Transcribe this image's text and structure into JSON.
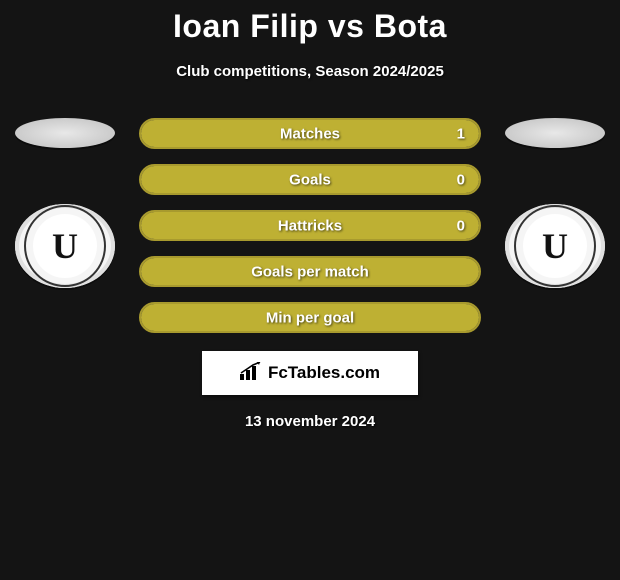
{
  "title": "Ioan Filip vs Bota",
  "subtitle": "Club competitions, Season 2024/2025",
  "date": "13 november 2024",
  "brand": "FcTables.com",
  "colors": {
    "bar_border": "#a89a2e",
    "bar_fill": "#beb033",
    "bar_empty": "#3a3a3a",
    "background": "#141414"
  },
  "badge_letter": "U",
  "stats": [
    {
      "label": "Matches",
      "value": "1",
      "fill_pct": 100
    },
    {
      "label": "Goals",
      "value": "0",
      "fill_pct": 100
    },
    {
      "label": "Hattricks",
      "value": "0",
      "fill_pct": 100
    },
    {
      "label": "Goals per match",
      "value": "",
      "fill_pct": 100
    },
    {
      "label": "Min per goal",
      "value": "",
      "fill_pct": 100
    }
  ]
}
